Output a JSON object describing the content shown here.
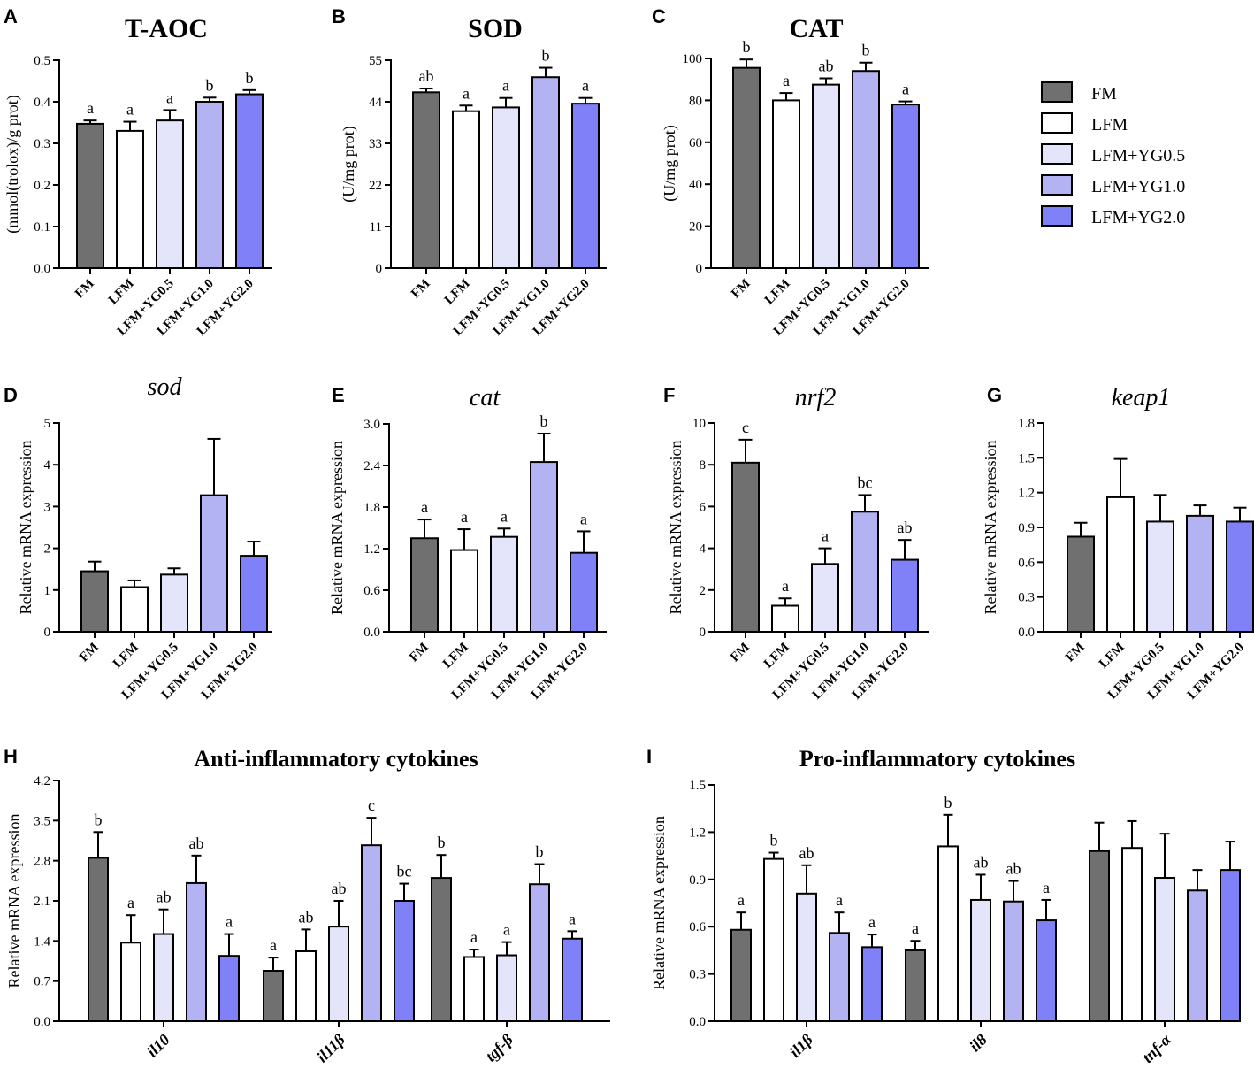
{
  "legend": {
    "items": [
      {
        "name": "FM",
        "color": "#707070"
      },
      {
        "name": "LFM",
        "color": "#ffffff"
      },
      {
        "name": "LFM+YG0.5",
        "color": "#e4e4fb"
      },
      {
        "name": "LFM+YG1.0",
        "color": "#b3b3f3"
      },
      {
        "name": "LFM+YG2.0",
        "color": "#8080f7"
      }
    ]
  },
  "chart_data": [
    {
      "id": "A",
      "panel_letter": "A",
      "type": "bar",
      "title": "T-AOC",
      "ylabel": "(mmol(trolox)/g prot)",
      "ylim": [
        0,
        0.5
      ],
      "yticks": [
        "0.0",
        "0.1",
        "0.2",
        "0.3",
        "0.4",
        "0.5"
      ],
      "categories": [
        "FM",
        "LFM",
        "LFM+YG0.5",
        "LFM+YG1.0",
        "LFM+YG2.0"
      ],
      "values": [
        0.347,
        0.33,
        0.355,
        0.4,
        0.418
      ],
      "errors": [
        0.008,
        0.022,
        0.025,
        0.01,
        0.01
      ],
      "letters": [
        "a",
        "a",
        "a",
        "b",
        "b"
      ]
    },
    {
      "id": "B",
      "panel_letter": "B",
      "type": "bar",
      "title": "SOD",
      "ylabel": "(U/mg prot)",
      "ylim": [
        0,
        55
      ],
      "yticks": [
        "0",
        "11",
        "22",
        "33",
        "44",
        "55"
      ],
      "categories": [
        "FM",
        "LFM",
        "LFM+YG0.5",
        "LFM+YG1.0",
        "LFM+YG2.0"
      ],
      "values": [
        46.5,
        41.5,
        42.5,
        50.5,
        43.5
      ],
      "errors": [
        1.0,
        1.5,
        2.5,
        2.5,
        1.5
      ],
      "letters": [
        "ab",
        "a",
        "a",
        "b",
        "a"
      ]
    },
    {
      "id": "C",
      "panel_letter": "C",
      "type": "bar",
      "title": "CAT",
      "ylabel": "(U/mg prot)",
      "ylim": [
        0,
        100
      ],
      "yticks": [
        "0",
        "20",
        "40",
        "60",
        "80",
        "100"
      ],
      "categories": [
        "FM",
        "LFM",
        "LFM+YG0.5",
        "LFM+YG1.0",
        "LFM+YG2.0"
      ],
      "values": [
        95.5,
        80,
        87.5,
        94,
        78
      ],
      "errors": [
        4.0,
        3.5,
        3.0,
        4.0,
        1.5
      ],
      "letters": [
        "b",
        "a",
        "ab",
        "b",
        "a"
      ]
    },
    {
      "id": "D",
      "panel_letter": "D",
      "type": "bar",
      "title": "sod",
      "ylabel": "Relative mRNA expression",
      "ylim": [
        0,
        5
      ],
      "yticks": [
        "0",
        "1",
        "2",
        "3",
        "4",
        "5"
      ],
      "categories": [
        "FM",
        "LFM",
        "LFM+YG0.5",
        "LFM+YG1.0",
        "LFM+YG2.0"
      ],
      "values": [
        1.45,
        1.07,
        1.37,
        3.27,
        1.82
      ],
      "errors": [
        0.23,
        0.16,
        0.15,
        1.35,
        0.34
      ],
      "letters": [
        "",
        "",
        "",
        "",
        ""
      ]
    },
    {
      "id": "E",
      "panel_letter": "E",
      "type": "bar",
      "title": "cat",
      "ylabel": "Relative mRNA expression",
      "ylim": [
        0,
        3.0
      ],
      "yticks": [
        "0.0",
        "0.6",
        "1.2",
        "1.8",
        "2.4",
        "3.0"
      ],
      "categories": [
        "FM",
        "LFM",
        "LFM+YG0.5",
        "LFM+YG1.0",
        "LFM+YG2.0"
      ],
      "values": [
        1.35,
        1.18,
        1.37,
        2.45,
        1.14
      ],
      "errors": [
        0.27,
        0.3,
        0.12,
        0.41,
        0.31
      ],
      "letters": [
        "a",
        "a",
        "a",
        "b",
        "a"
      ]
    },
    {
      "id": "F",
      "panel_letter": "F",
      "type": "bar",
      "title": "nrf2",
      "ylabel": "Relative mRNA expression",
      "ylim": [
        0,
        10
      ],
      "yticks": [
        "0",
        "2",
        "4",
        "6",
        "8",
        "10"
      ],
      "categories": [
        "FM",
        "LFM",
        "LFM+YG0.5",
        "LFM+YG1.0",
        "LFM+YG2.0"
      ],
      "values": [
        8.1,
        1.25,
        3.25,
        5.75,
        3.45
      ],
      "errors": [
        1.1,
        0.35,
        0.75,
        0.8,
        0.95
      ],
      "letters": [
        "c",
        "a",
        "a",
        "bc",
        "ab"
      ]
    },
    {
      "id": "G",
      "panel_letter": "G",
      "type": "bar",
      "title": "keap1",
      "ylabel": "Relative mRNA expression",
      "ylim": [
        0,
        1.8
      ],
      "yticks": [
        "0.0",
        "0.3",
        "0.6",
        "0.9",
        "1.2",
        "1.5",
        "1.8"
      ],
      "categories": [
        "FM",
        "LFM",
        "LFM+YG0.5",
        "LFM+YG1.0",
        "LFM+YG2.0"
      ],
      "values": [
        0.82,
        1.16,
        0.95,
        1.0,
        0.95
      ],
      "errors": [
        0.12,
        0.33,
        0.23,
        0.09,
        0.12
      ],
      "letters": [
        "",
        "",
        "",
        "",
        ""
      ]
    },
    {
      "id": "H",
      "panel_letter": "H",
      "type": "bar",
      "title": "Anti-inflammatory cytokines",
      "ylabel": "Relative mRNA expression",
      "ylim": [
        0,
        4.2
      ],
      "yticks": [
        "0.0",
        "0.7",
        "1.4",
        "2.1",
        "2.8",
        "3.5",
        "4.2"
      ],
      "categories": [
        "il10",
        "il11β",
        "tgf-β"
      ],
      "series": [
        {
          "name": "FM",
          "values": [
            2.85,
            0.88,
            2.5
          ],
          "errors": [
            0.45,
            0.23,
            0.4
          ],
          "letters": [
            "b",
            "a",
            "b"
          ]
        },
        {
          "name": "LFM",
          "values": [
            1.37,
            1.22,
            1.12
          ],
          "errors": [
            0.48,
            0.38,
            0.13
          ],
          "letters": [
            "a",
            "ab",
            "a"
          ]
        },
        {
          "name": "LFM+YG0.5",
          "values": [
            1.52,
            1.65,
            1.15
          ],
          "errors": [
            0.43,
            0.45,
            0.23
          ],
          "letters": [
            "ab",
            "ab",
            "a"
          ]
        },
        {
          "name": "LFM+YG1.0",
          "values": [
            2.41,
            3.07,
            2.39
          ],
          "errors": [
            0.48,
            0.48,
            0.35
          ],
          "letters": [
            "ab",
            "c",
            "b"
          ]
        },
        {
          "name": "LFM+YG2.0",
          "values": [
            1.14,
            2.1,
            1.44
          ],
          "errors": [
            0.38,
            0.3,
            0.13
          ],
          "letters": [
            "a",
            "bc",
            "a"
          ]
        }
      ]
    },
    {
      "id": "I",
      "panel_letter": "I",
      "type": "bar",
      "title": "Pro-inflammatory cytokines",
      "ylabel": "Relative mRNA expression",
      "ylim": [
        0,
        1.5
      ],
      "yticks": [
        "0.0",
        "0.3",
        "0.6",
        "0.9",
        "1.2",
        "1.5"
      ],
      "categories": [
        "il1β",
        "il8",
        "tnf-α"
      ],
      "series": [
        {
          "name": "FM",
          "values": [
            0.58,
            0.45,
            1.08
          ],
          "errors": [
            0.11,
            0.06,
            0.18
          ],
          "letters": [
            "a",
            "a",
            ""
          ]
        },
        {
          "name": "LFM",
          "values": [
            1.03,
            1.11,
            1.1
          ],
          "errors": [
            0.04,
            0.2,
            0.17
          ],
          "letters": [
            "b",
            "b",
            ""
          ]
        },
        {
          "name": "LFM+YG0.5",
          "values": [
            0.81,
            0.77,
            0.91
          ],
          "errors": [
            0.18,
            0.16,
            0.28
          ],
          "letters": [
            "ab",
            "ab",
            ""
          ]
        },
        {
          "name": "LFM+YG1.0",
          "values": [
            0.56,
            0.76,
            0.83
          ],
          "errors": [
            0.13,
            0.13,
            0.13
          ],
          "letters": [
            "a",
            "ab",
            ""
          ]
        },
        {
          "name": "LFM+YG2.0",
          "values": [
            0.47,
            0.64,
            0.96
          ],
          "errors": [
            0.08,
            0.13,
            0.18
          ],
          "letters": [
            "a",
            "a",
            ""
          ]
        }
      ]
    }
  ]
}
